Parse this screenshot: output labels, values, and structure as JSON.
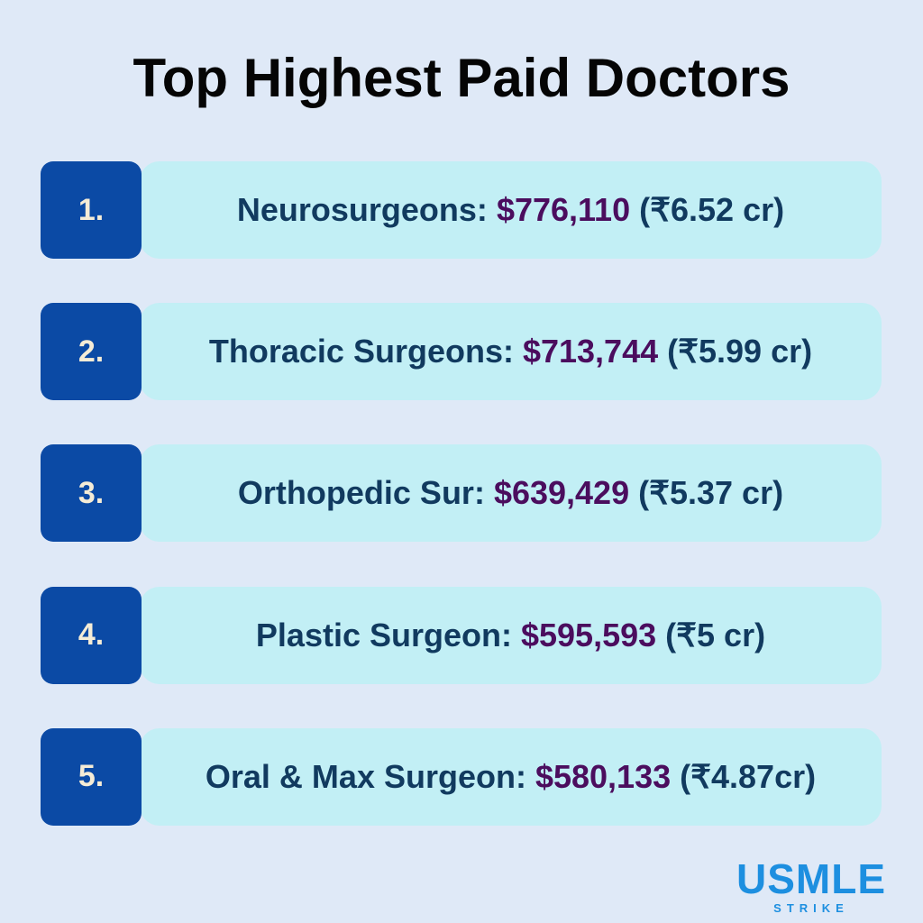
{
  "header": {
    "title": "Top Highest Paid Doctors"
  },
  "items": [
    {
      "rank": "1.",
      "label": "Neurosurgeons:",
      "usd": "$776,110",
      "inr": "(₹6.52 cr)"
    },
    {
      "rank": "2.",
      "label": "Thoracic Surgeons:",
      "usd": "$713,744",
      "inr": "(₹5.99 cr)"
    },
    {
      "rank": "3.",
      "label": "Orthopedic Sur:",
      "usd": "$639,429",
      "inr": "(₹5.37 cr)"
    },
    {
      "rank": "4.",
      "label": "Plastic Surgeon:",
      "usd": "$595,593",
      "inr": "(₹5 cr)"
    },
    {
      "rank": "5.",
      "label": "Oral & Max Surgeon:",
      "usd": "$580,133",
      "inr": "(₹4.87cr)"
    }
  ],
  "logo": {
    "name": "USMLE",
    "tagline": "STRIKE"
  }
}
